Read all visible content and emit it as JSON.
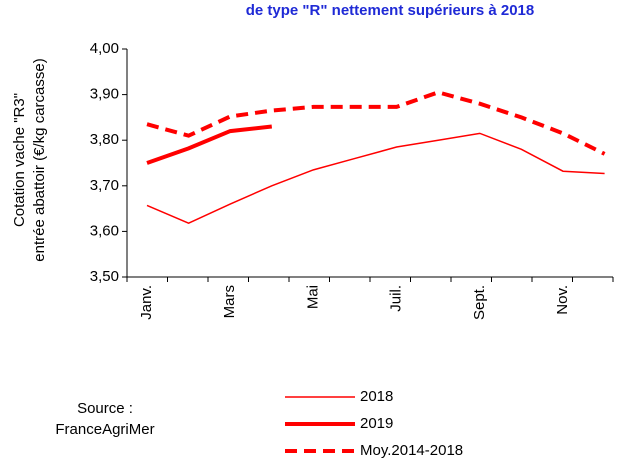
{
  "chart_data": {
    "type": "line",
    "title": "de type \"R\" nettement supérieurs à 2018",
    "y_label": [
      "Cotation vache \"R3\"",
      "entrée abattoir (€/kg carcasse)"
    ],
    "source": [
      "Source :",
      "FranceAgriMer"
    ],
    "categories": [
      "Janv.",
      null,
      "Mars",
      null,
      "Mai",
      null,
      "Juil.",
      null,
      "Sept.",
      null,
      "Nov.",
      null
    ],
    "series": [
      {
        "name": "2018",
        "color": "#ff0000",
        "style": "thin",
        "values": [
          3.657,
          3.618,
          3.66,
          3.7,
          3.735,
          3.76,
          3.785,
          3.8,
          3.815,
          3.78,
          3.732,
          3.727
        ]
      },
      {
        "name": "2019",
        "color": "#ff0000",
        "style": "thick",
        "values": [
          3.75,
          3.782,
          3.82,
          3.83,
          null,
          null,
          null,
          null,
          null,
          null,
          null,
          null
        ]
      },
      {
        "name": "Moy.2014-2018",
        "color": "#ff0000",
        "style": "dashed",
        "values": [
          3.835,
          3.81,
          3.852,
          3.865,
          3.873,
          3.873,
          3.873,
          3.905,
          3.88,
          3.85,
          3.815,
          3.77
        ]
      }
    ],
    "ylim": [
      3.5,
      4.0
    ],
    "yticks": [
      {
        "value": 3.5,
        "label": "3,50"
      },
      {
        "value": 3.6,
        "label": "3,60"
      },
      {
        "value": 3.7,
        "label": "3,70"
      },
      {
        "value": 3.8,
        "label": "3,80"
      },
      {
        "value": 3.9,
        "label": "3,90"
      },
      {
        "value": 4.0,
        "label": "4,00"
      }
    ]
  }
}
